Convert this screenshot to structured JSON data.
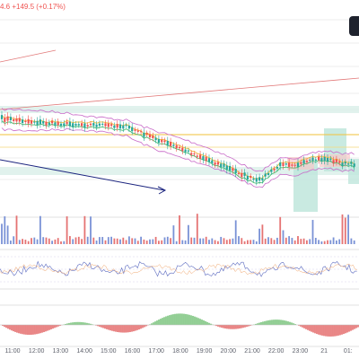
{
  "header": {
    "change_text": "4.6 +149.5 (+0.17%)"
  },
  "time_axis": {
    "labels": [
      "11:00",
      "12:00",
      "13:00",
      "14:00",
      "15:00",
      "16:00",
      "17:00",
      "18:00",
      "19:00",
      "20:00",
      "21:00",
      "22:00",
      "23:00",
      "21",
      "01:"
    ]
  },
  "colors": {
    "up": "#26a69a",
    "down": "#ef5350",
    "bollinger_upper": "#c86ac8",
    "bollinger_lower": "#c86ac8",
    "ema_fast": "#f2c23a",
    "ema_slow": "#4cbf6f",
    "trendline": "#e27a7a",
    "arrow": "#1a237e",
    "volume_up": "#7a92d6",
    "volume_down": "#e57373",
    "rsi_line": "#5c6bc0",
    "oscillator_pos": "#81c784",
    "oscillator_neg": "#e57373"
  },
  "icons": {
    "chart_button": "chart-options-icon"
  }
}
